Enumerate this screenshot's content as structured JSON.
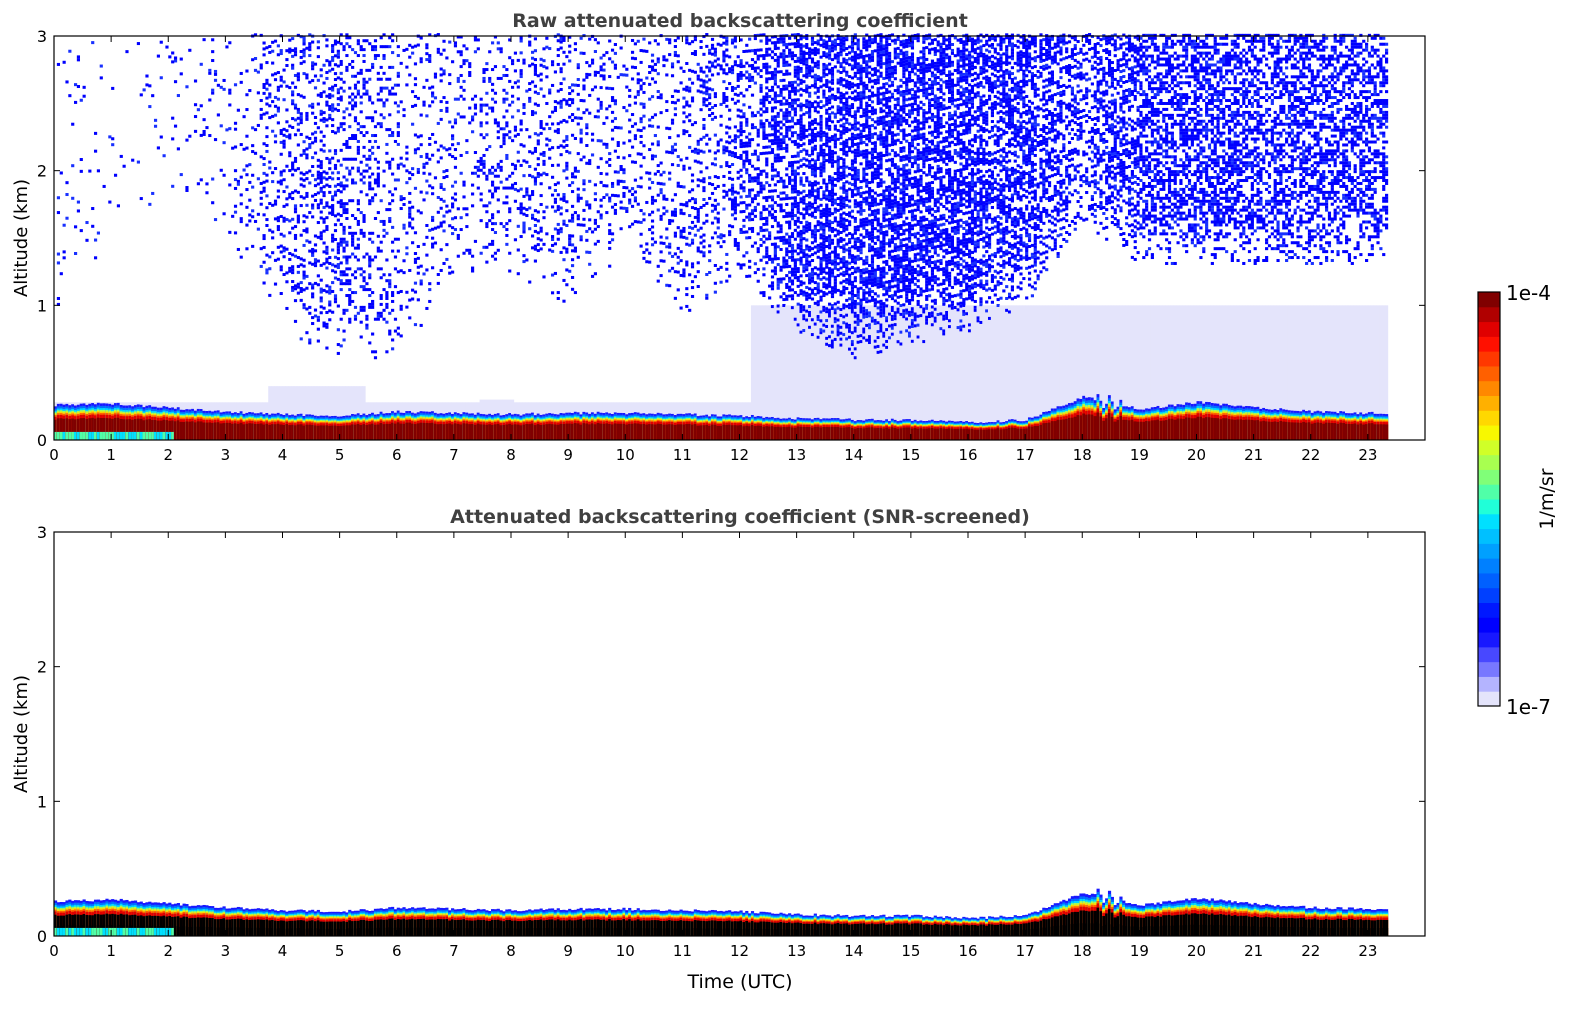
{
  "chart_data": [
    {
      "type": "heatmap",
      "title": "Raw attenuated backscattering coefficient",
      "xlabel": "",
      "ylabel": "Altitude (km)",
      "xlim": [
        0,
        24
      ],
      "ylim": [
        0,
        3
      ],
      "x_ticks": [
        "0",
        "1",
        "2",
        "3",
        "4",
        "5",
        "6",
        "7",
        "8",
        "9",
        "10",
        "11",
        "12",
        "13",
        "14",
        "15",
        "16",
        "17",
        "18",
        "19",
        "20",
        "21",
        "22",
        "23"
      ],
      "y_ticks": [
        "0",
        "1",
        "2",
        "3"
      ],
      "data_end_hour": 23.33,
      "hours": [
        0,
        1,
        2,
        3,
        4,
        5,
        6,
        7,
        8,
        9,
        10,
        11,
        12,
        13,
        14,
        15,
        16,
        17,
        18,
        19,
        20,
        21,
        22,
        23
      ],
      "layer_top_km": [
        0.26,
        0.27,
        0.24,
        0.21,
        0.19,
        0.18,
        0.21,
        0.2,
        0.19,
        0.2,
        0.2,
        0.19,
        0.18,
        0.16,
        0.15,
        0.15,
        0.13,
        0.15,
        0.32,
        0.23,
        0.28,
        0.24,
        0.21,
        0.2
      ],
      "noise_density": [
        0.04,
        0.02,
        0.03,
        0.06,
        0.22,
        0.3,
        0.15,
        0.15,
        0.2,
        0.2,
        0.15,
        0.2,
        0.3,
        0.55,
        0.6,
        0.6,
        0.6,
        0.55,
        0.4,
        0.55,
        0.55,
        0.5,
        0.5,
        0.5
      ],
      "noise_bottom_km": [
        0.9,
        1.5,
        1.8,
        1.5,
        0.8,
        0.6,
        0.6,
        1.2,
        1.2,
        1.0,
        1.4,
        0.9,
        1.2,
        0.8,
        0.6,
        0.7,
        0.8,
        1.0,
        1.6,
        1.3,
        1.3,
        1.3,
        1.3,
        1.3
      ],
      "screened": false
    },
    {
      "type": "heatmap",
      "title": "Attenuated backscattering coefficient (SNR-screened)",
      "xlabel": "Time (UTC)",
      "ylabel": "Altitude (km)",
      "xlim": [
        0,
        24
      ],
      "ylim": [
        0,
        3
      ],
      "x_ticks": [
        "0",
        "1",
        "2",
        "3",
        "4",
        "5",
        "6",
        "7",
        "8",
        "9",
        "10",
        "11",
        "12",
        "13",
        "14",
        "15",
        "16",
        "17",
        "18",
        "19",
        "20",
        "21",
        "22",
        "23"
      ],
      "y_ticks": [
        "0",
        "1",
        "2",
        "3"
      ],
      "data_end_hour": 23.33,
      "screened": true
    }
  ],
  "colorbar": {
    "label": "1/m/sr",
    "max_label": "1e-4",
    "min_label": "1e-7",
    "colors": [
      "#e4e4fb",
      "#b4b4ff",
      "#7878ff",
      "#4848ff",
      "#1818ff",
      "#0000ff",
      "#0018ff",
      "#0040ff",
      "#0060ff",
      "#0080ff",
      "#00a0ff",
      "#00c0ff",
      "#00e0ff",
      "#20ffd8",
      "#50ffa8",
      "#80ff78",
      "#a8ff50",
      "#d0ff28",
      "#f8f800",
      "#ffd800",
      "#ffb000",
      "#ff8800",
      "#ff6000",
      "#ff3800",
      "#ff1000",
      "#e00000",
      "#b00000",
      "#800000"
    ]
  }
}
